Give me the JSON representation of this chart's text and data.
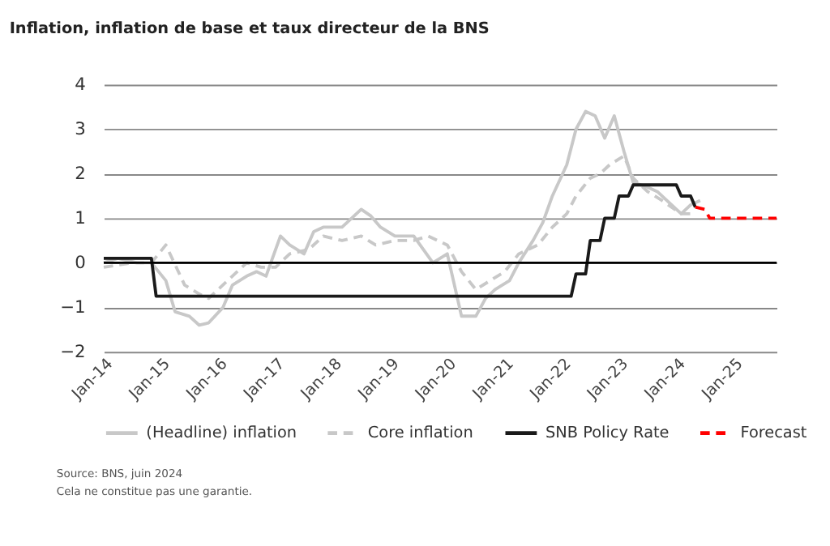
{
  "chart_data": {
    "type": "line",
    "title": "Inflation, inflation de base et taux directeur de la BNS",
    "xlim": [
      "2014-01",
      "2025-10"
    ],
    "xticks": [
      {
        "value": "2014-01",
        "label": "Jan-14"
      },
      {
        "value": "2015-01",
        "label": "Jan-15"
      },
      {
        "value": "2016-01",
        "label": "Jan-16"
      },
      {
        "value": "2017-01",
        "label": "Jan-17"
      },
      {
        "value": "2018-01",
        "label": "Jan-18"
      },
      {
        "value": "2019-01",
        "label": "Jan-19"
      },
      {
        "value": "2020-01",
        "label": "Jan-20"
      },
      {
        "value": "2021-01",
        "label": "Jan-21"
      },
      {
        "value": "2022-01",
        "label": "Jan-22"
      },
      {
        "value": "2023-01",
        "label": "Jan-23"
      },
      {
        "value": "2024-01",
        "label": "Jan-24"
      },
      {
        "value": "2025-01",
        "label": "Jan-25"
      }
    ],
    "ylim": [
      -2,
      4
    ],
    "yticks": [
      -2,
      -1,
      0,
      1,
      2,
      3,
      4
    ],
    "grid": "y",
    "legend": "bottom",
    "ref_lines": [
      {
        "axis": "y",
        "value": 0,
        "color": "#000000"
      }
    ],
    "series": [
      {
        "name": "(Headline) inflation",
        "color": "#c8c8c8",
        "line_style": "solid",
        "x": [
          "2014-01",
          "2014-04",
          "2014-08",
          "2014-11",
          "2015-02",
          "2015-04",
          "2015-07",
          "2015-09",
          "2015-11",
          "2016-02",
          "2016-04",
          "2016-07",
          "2016-09",
          "2016-11",
          "2017-02",
          "2017-04",
          "2017-07",
          "2017-09",
          "2017-11",
          "2018-03",
          "2018-07",
          "2018-09",
          "2018-11",
          "2019-02",
          "2019-06",
          "2019-08",
          "2019-10",
          "2020-01",
          "2020-04",
          "2020-07",
          "2020-09",
          "2020-11",
          "2021-02",
          "2021-04",
          "2021-07",
          "2021-09",
          "2021-11",
          "2022-02",
          "2022-04",
          "2022-06",
          "2022-08",
          "2022-10",
          "2022-12",
          "2023-02",
          "2023-04",
          "2023-07",
          "2023-09",
          "2023-11",
          "2024-02",
          "2024-04",
          "2024-06"
        ],
        "values": [
          0.0,
          0.1,
          0.0,
          0.0,
          -0.4,
          -1.1,
          -1.2,
          -1.4,
          -1.35,
          -1.0,
          -0.5,
          -0.3,
          -0.2,
          -0.3,
          0.6,
          0.4,
          0.2,
          0.7,
          0.8,
          0.8,
          1.2,
          1.05,
          0.8,
          0.6,
          0.6,
          0.3,
          0.0,
          0.2,
          -1.2,
          -1.2,
          -0.8,
          -0.6,
          -0.4,
          0.0,
          0.5,
          0.9,
          1.5,
          2.2,
          3.0,
          3.4,
          3.3,
          2.8,
          3.3,
          2.5,
          1.8,
          1.7,
          1.6,
          1.4,
          1.1,
          1.3,
          1.4
        ]
      },
      {
        "name": "Core inflation",
        "color": "#c8c8c8",
        "line_style": "dashed",
        "x": [
          "2014-01",
          "2014-07",
          "2014-11",
          "2015-02",
          "2015-06",
          "2015-09",
          "2015-11",
          "2016-03",
          "2016-07",
          "2016-10",
          "2017-01",
          "2017-04",
          "2017-08",
          "2017-11",
          "2018-03",
          "2018-07",
          "2018-10",
          "2019-02",
          "2019-06",
          "2019-09",
          "2020-01",
          "2020-04",
          "2020-07",
          "2020-10",
          "2021-01",
          "2021-04",
          "2021-08",
          "2021-11",
          "2022-02",
          "2022-04",
          "2022-07",
          "2022-09",
          "2022-11",
          "2023-02",
          "2023-04",
          "2023-07",
          "2023-10",
          "2024-02",
          "2024-04"
        ],
        "values": [
          -0.1,
          0.0,
          0.0,
          0.4,
          -0.5,
          -0.7,
          -0.8,
          -0.4,
          0.0,
          -0.1,
          -0.1,
          0.2,
          0.3,
          0.6,
          0.5,
          0.6,
          0.4,
          0.5,
          0.5,
          0.6,
          0.4,
          -0.2,
          -0.6,
          -0.4,
          -0.2,
          0.2,
          0.4,
          0.8,
          1.1,
          1.5,
          1.9,
          2.0,
          2.2,
          2.4,
          1.9,
          1.6,
          1.4,
          1.1,
          1.1
        ]
      },
      {
        "name": "SNB Policy Rate",
        "color": "#1a1a1a",
        "line_style": "solid",
        "x": [
          "2014-01",
          "2014-11",
          "2014-12",
          "2022-03",
          "2022-04",
          "2022-06",
          "2022-07",
          "2022-09",
          "2022-10",
          "2022-12",
          "2023-01",
          "2023-03",
          "2023-04",
          "2024-01",
          "2024-02",
          "2024-04",
          "2024-05"
        ],
        "values": [
          0.1,
          0.1,
          -0.75,
          -0.75,
          -0.25,
          -0.25,
          0.5,
          0.5,
          1.0,
          1.0,
          1.5,
          1.5,
          1.75,
          1.75,
          1.5,
          1.5,
          1.25
        ]
      },
      {
        "name": "Forecast",
        "color": "#ff0000",
        "line_style": "dashed",
        "x": [
          "2024-05",
          "2024-07",
          "2024-08",
          "2025-10"
        ],
        "values": [
          1.25,
          1.2,
          1.0,
          1.0
        ]
      }
    ],
    "annotations": [
      "Source: BNS, juin 2024",
      "Cela ne constitue pas une garantie."
    ]
  }
}
